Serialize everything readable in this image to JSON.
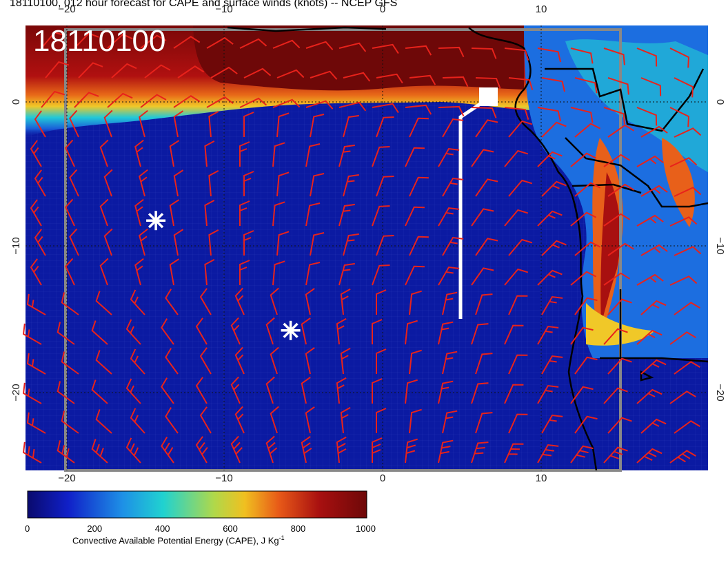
{
  "title": "18110100, 012 hour forecast for CAPE and surface winds (knots) -- NCEP GFS",
  "stamp": "18110100",
  "map": {
    "lon_ticks": [
      "−20",
      "−10",
      "0",
      "10"
    ],
    "lat_ticks": [
      "0",
      "−10",
      "−20"
    ],
    "barb_color": "#e8221b",
    "markers": [
      {
        "name": "asterisk-1",
        "lon": -14.3,
        "lat": -8.2
      },
      {
        "name": "asterisk-2",
        "lon": -5.8,
        "lat": -15.8
      }
    ]
  },
  "colorbar": {
    "label": "Convective Available Potential Energy (CAPE), J Kg",
    "label_sup": "-1",
    "ticks": [
      "0",
      "200",
      "400",
      "600",
      "800",
      "1000"
    ],
    "colors": [
      "#0a0a6e",
      "#1020c8",
      "#1e90e6",
      "#20d2d0",
      "#b0d84a",
      "#f0c020",
      "#e85a18",
      "#a81010",
      "#6e0808"
    ]
  }
}
